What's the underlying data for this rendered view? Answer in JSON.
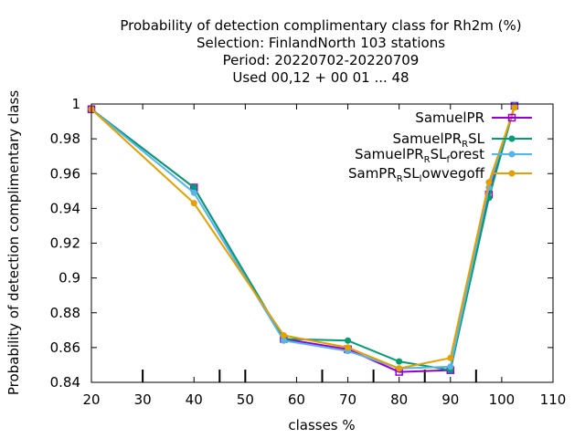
{
  "chart_data": {
    "type": "line",
    "title_lines": [
      "Probability of detection complimentary class  for Rh2m (%)",
      "Selection: FinlandNorth    103 stations",
      "Period: 20220702-20220709",
      "Used  00,12  + 00 01 ... 48"
    ],
    "xlabel": "classes %",
    "ylabel": "Probability of detection complimentary class",
    "xlim": [
      20,
      110
    ],
    "ylim": [
      0.84,
      1.0
    ],
    "xticks": [
      "20",
      "30",
      "40",
      "50",
      "60",
      "70",
      "80",
      "90",
      "100",
      "110"
    ],
    "yticks": [
      "0.84",
      "0.86",
      "0.88",
      "0.9",
      "0.92",
      "0.94",
      "0.96",
      "0.98",
      "1"
    ],
    "minor_ticks_x": [
      30,
      45,
      50,
      65,
      75,
      85,
      95
    ],
    "legend_position": "top-right",
    "series": [
      {
        "name": "SamuelPR",
        "legend_parts": [
          [
            "SamuelPR",
            false
          ]
        ],
        "color": "#9400d3",
        "marker": "square",
        "x": [
          20,
          40,
          57.5,
          70,
          80,
          90,
          97.5,
          102.5
        ],
        "y": [
          0.997,
          0.952,
          0.865,
          0.859,
          0.846,
          0.847,
          0.948,
          0.999
        ]
      },
      {
        "name": "SamuelPR_RSL",
        "legend_parts": [
          [
            "SamuelPR",
            false
          ],
          [
            "R",
            true
          ],
          [
            "SL",
            false
          ]
        ],
        "color": "#009e73",
        "marker": "circle",
        "x": [
          20,
          40,
          57.5,
          70,
          80,
          90,
          97.5,
          102.5
        ],
        "y": [
          0.997,
          0.952,
          0.865,
          0.864,
          0.852,
          0.847,
          0.946,
          0.999
        ]
      },
      {
        "name": "SamuelPR_RSL_forest",
        "legend_parts": [
          [
            "SamuelPR",
            false
          ],
          [
            "R",
            true
          ],
          [
            "SL",
            false
          ],
          [
            "f",
            true
          ],
          [
            "orest",
            false
          ]
        ],
        "color": "#56b4e9",
        "marker": "circle",
        "x": [
          20,
          40,
          57.5,
          70,
          80,
          90,
          97.5,
          102.5
        ],
        "y": [
          0.997,
          0.949,
          0.864,
          0.858,
          0.848,
          0.849,
          0.952,
          0.999
        ]
      },
      {
        "name": "SamPR_RSL_lowvegoff",
        "legend_parts": [
          [
            "SamPR",
            false
          ],
          [
            "R",
            true
          ],
          [
            "SL",
            false
          ],
          [
            "l",
            true
          ],
          [
            "owvegoff",
            false
          ]
        ],
        "color": "#e69f00",
        "marker": "circle",
        "x": [
          20,
          40,
          57.5,
          70,
          80,
          90,
          97.5,
          102.5
        ],
        "y": [
          0.997,
          0.943,
          0.867,
          0.86,
          0.848,
          0.854,
          0.955,
          0.998
        ]
      }
    ]
  }
}
